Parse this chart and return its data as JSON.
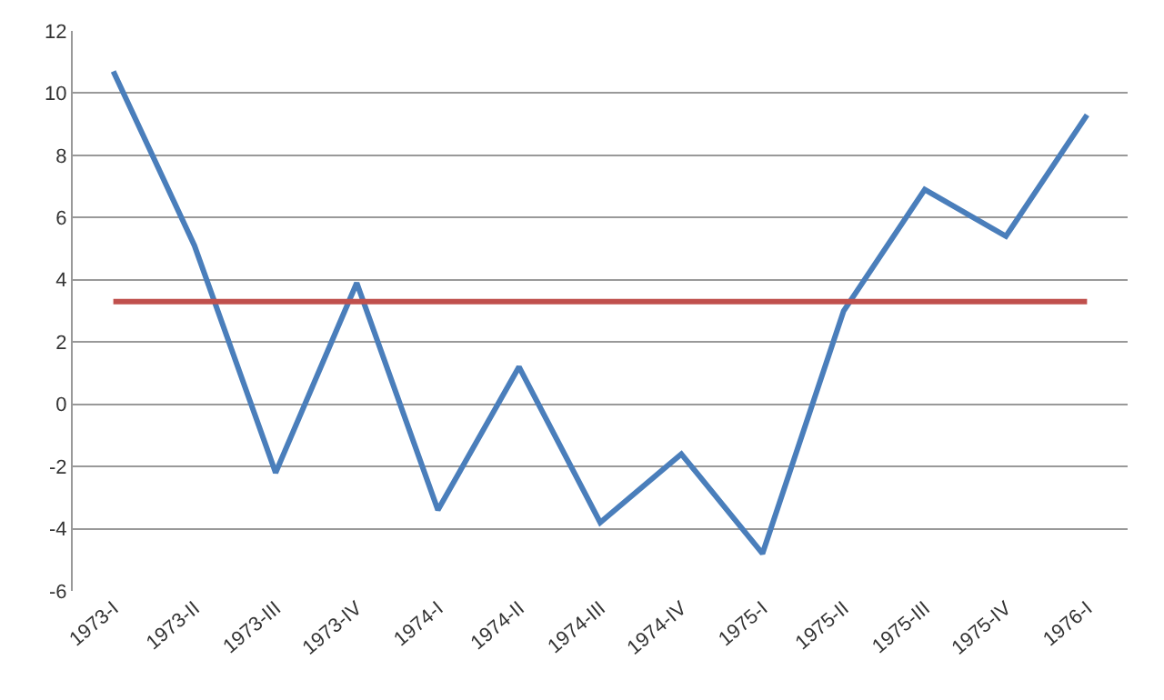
{
  "chart_data": {
    "type": "line",
    "categories": [
      "1973-I",
      "1973-II",
      "1973-III",
      "1973-IV",
      "1974-I",
      "1974-II",
      "1974-III",
      "1974-IV",
      "1975-I",
      "1975-II",
      "1975-III",
      "1975-IV",
      "1976-I"
    ],
    "series": [
      {
        "color": "#4a7ebb",
        "values": [
          10.7,
          5.1,
          -2.2,
          3.9,
          -3.4,
          1.2,
          -3.8,
          -1.6,
          -4.8,
          3.0,
          6.9,
          5.4,
          9.3
        ]
      }
    ],
    "ref_lines": [
      {
        "axis": "y",
        "value": 3.3,
        "color": "#c0504d"
      }
    ],
    "ylim": [
      -6,
      12
    ],
    "yticks": [
      -6,
      -4,
      -2,
      0,
      2,
      4,
      6,
      8,
      10,
      12
    ],
    "grid": "y",
    "marker": "none",
    "line_style": "solid"
  }
}
